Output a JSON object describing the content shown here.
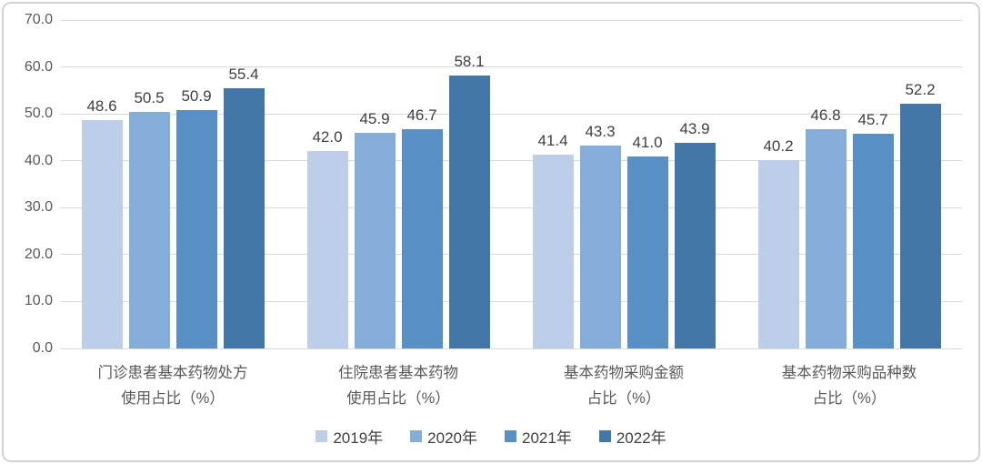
{
  "chart_data": {
    "type": "bar",
    "title": "",
    "xlabel": "",
    "ylabel": "",
    "ylim": [
      0,
      70
    ],
    "ytick_step": 10,
    "ytick_labels": [
      "0.0",
      "10.0",
      "20.0",
      "30.0",
      "40.0",
      "50.0",
      "60.0",
      "70.0"
    ],
    "grid": true,
    "legend_position": "bottom",
    "categories": [
      "门诊患者基本药物处方\n使用占比（%）",
      "住院患者基本药物\n使用占比（%）",
      "基本药物采购金额\n占比（%）",
      "基本药物采购品种数\n占比（%）"
    ],
    "series": [
      {
        "name": "2019年",
        "color": "#BDCEE8",
        "values": [
          48.6,
          42.0,
          41.4,
          40.2
        ],
        "value_labels": [
          "48.6",
          "42.0",
          "41.4",
          "40.2"
        ]
      },
      {
        "name": "2020年",
        "color": "#85ADDA",
        "values": [
          50.5,
          45.9,
          43.3,
          46.8
        ],
        "value_labels": [
          "50.5",
          "45.9",
          "43.3",
          "46.8"
        ]
      },
      {
        "name": "2021年",
        "color": "#5890C6",
        "values": [
          50.9,
          46.7,
          41.0,
          45.7
        ],
        "value_labels": [
          "50.9",
          "46.7",
          "41.0",
          "45.7"
        ]
      },
      {
        "name": "2022年",
        "color": "#4377A7",
        "values": [
          55.4,
          58.1,
          43.9,
          52.2
        ],
        "value_labels": [
          "55.4",
          "58.1",
          "43.9",
          "52.2"
        ]
      }
    ],
    "colors": {
      "gridline": "#d9d9d9",
      "axis_text": "#595959",
      "value_text": "#404040",
      "frame_border": "#d3d3d3"
    }
  }
}
